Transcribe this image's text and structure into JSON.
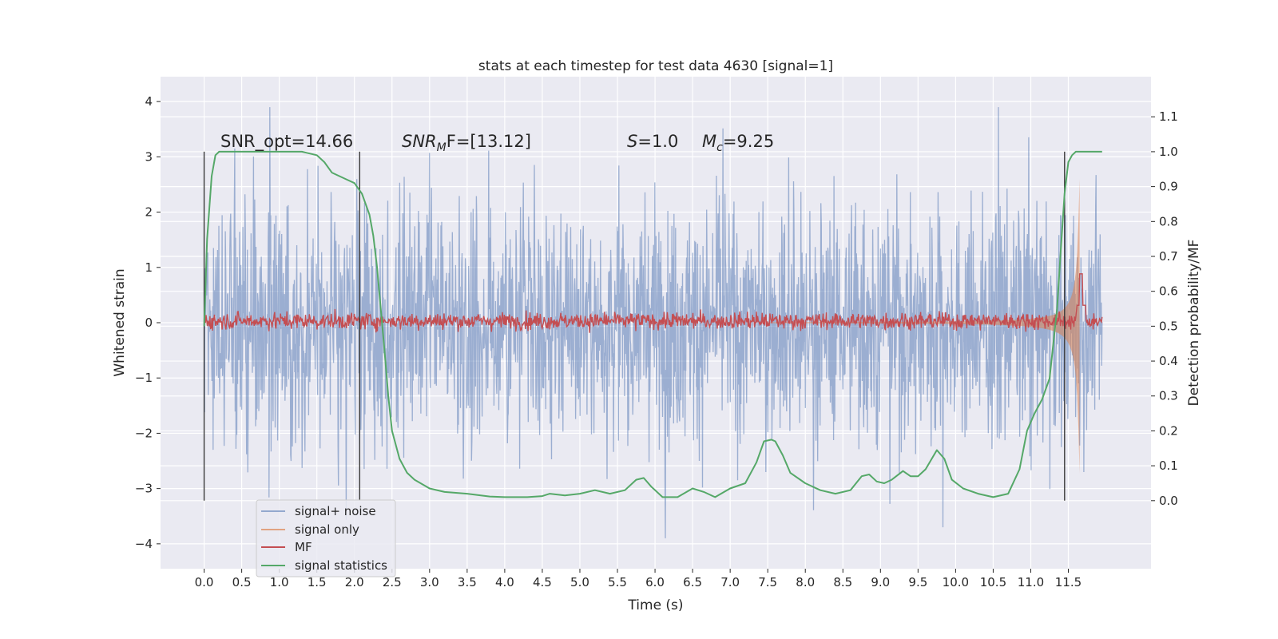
{
  "chart_data": {
    "type": "line",
    "title": "stats at each timestep for test data 4630 [signal=1]",
    "xlabel": "Time (s)",
    "ylabel_left": "Whitened strain",
    "ylabel_right": "Detection probability/MF",
    "xlim": [
      -0.58,
      12.6
    ],
    "ylim_left": [
      -4.45,
      4.45
    ],
    "ylim_right": [
      -0.195,
      1.215
    ],
    "x_ticks": [
      "0.0",
      "0.5",
      "1.0",
      "1.5",
      "2.0",
      "2.5",
      "3.0",
      "3.5",
      "4.0",
      "4.5",
      "5.0",
      "5.5",
      "6.0",
      "6.5",
      "7.0",
      "7.5",
      "8.0",
      "8.5",
      "9.0",
      "9.5",
      "10.0",
      "10.5",
      "11.0",
      "11.5"
    ],
    "y_left_ticks": [
      "4",
      "3",
      "2",
      "1",
      "0",
      "−1",
      "−2",
      "−3",
      "−4"
    ],
    "y_right_ticks": [
      "1.1",
      "1.0",
      "0.9",
      "0.8",
      "0.7",
      "0.6",
      "0.5",
      "0.4",
      "0.3",
      "0.2",
      "0.1",
      "0.0"
    ],
    "grid": true,
    "legend_position": "lower-left",
    "colors": {
      "background": "#eaeaf2",
      "grid": "#ffffff",
      "signal_noise": "#4c72b0",
      "signal_only": "#dd8452",
      "mf": "#c44e52",
      "signal_statistics": "#55a868",
      "vlines": "#3a3a3a"
    },
    "annotations": {
      "snr_opt": "SNR_opt=14.66",
      "snr_mf_base": "SNR",
      "snr_mf_sub": "M",
      "snr_mf_rest": "F=[13.12]",
      "s_label": "S",
      "s_value": "=1.0",
      "mc_label": "M",
      "mc_sub": "c",
      "mc_value": "=9.25"
    },
    "series": [
      {
        "name": "signal+ noise",
        "axis": "left",
        "x_range": [
          0,
          11.95
        ],
        "amplitude_envelope": 3.9
      },
      {
        "name": "signal only",
        "axis": "left",
        "x_range": [
          7.5,
          11.65
        ],
        "peak": 2.6
      },
      {
        "name": "MF",
        "axis": "right",
        "x_range": [
          0,
          11.95
        ],
        "baseline": 0.5,
        "peak": 0.65
      },
      {
        "name": "signal statistics",
        "axis": "right",
        "x": [
          0.0,
          0.04,
          0.1,
          0.15,
          0.2,
          0.3,
          0.5,
          1.0,
          1.3,
          1.5,
          1.6,
          1.7,
          1.8,
          1.9,
          2.0,
          2.1,
          2.2,
          2.25,
          2.3,
          2.35,
          2.4,
          2.45,
          2.5,
          2.6,
          2.7,
          2.8,
          3.0,
          3.2,
          3.5,
          3.8,
          4.0,
          4.3,
          4.5,
          4.6,
          4.8,
          5.0,
          5.2,
          5.4,
          5.6,
          5.75,
          5.85,
          5.95,
          6.1,
          6.3,
          6.5,
          6.65,
          6.8,
          7.0,
          7.2,
          7.35,
          7.45,
          7.55,
          7.6,
          7.7,
          7.8,
          8.0,
          8.2,
          8.4,
          8.6,
          8.75,
          8.85,
          8.95,
          9.05,
          9.15,
          9.3,
          9.4,
          9.5,
          9.6,
          9.75,
          9.85,
          9.95,
          10.1,
          10.3,
          10.5,
          10.7,
          10.85,
          10.95,
          11.05,
          11.1,
          11.15,
          11.25,
          11.35,
          11.4,
          11.45,
          11.5,
          11.55,
          11.6,
          11.7,
          11.8,
          11.95
        ],
        "y": [
          0.5,
          0.75,
          0.93,
          0.99,
          1.0,
          1.0,
          1.0,
          1.0,
          1.0,
          0.99,
          0.97,
          0.94,
          0.93,
          0.92,
          0.91,
          0.88,
          0.82,
          0.76,
          0.67,
          0.55,
          0.43,
          0.3,
          0.2,
          0.12,
          0.08,
          0.06,
          0.035,
          0.025,
          0.02,
          0.012,
          0.01,
          0.01,
          0.013,
          0.02,
          0.015,
          0.02,
          0.03,
          0.02,
          0.03,
          0.06,
          0.065,
          0.04,
          0.01,
          0.01,
          0.035,
          0.025,
          0.01,
          0.035,
          0.05,
          0.11,
          0.17,
          0.175,
          0.17,
          0.13,
          0.08,
          0.05,
          0.03,
          0.02,
          0.03,
          0.07,
          0.075,
          0.055,
          0.05,
          0.06,
          0.085,
          0.07,
          0.07,
          0.09,
          0.145,
          0.12,
          0.06,
          0.035,
          0.02,
          0.01,
          0.02,
          0.09,
          0.2,
          0.25,
          0.27,
          0.29,
          0.35,
          0.55,
          0.72,
          0.88,
          0.97,
          0.99,
          1.0,
          1.0,
          1.0,
          1.0
        ]
      }
    ],
    "vertical_lines_x": [
      0.0,
      2.07,
      11.45
    ],
    "vertical_lines_range_right": [
      0.0,
      1.0
    ],
    "legend": [
      "signal+ noise",
      "signal only",
      "MF",
      "signal statistics"
    ]
  }
}
